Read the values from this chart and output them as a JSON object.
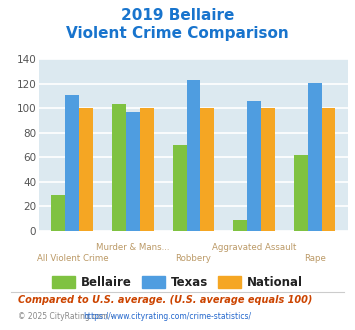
{
  "title_line1": "2019 Bellaire",
  "title_line2": "Violent Crime Comparison",
  "title_color": "#1874cd",
  "groups": [
    {
      "label": "All Violent Crime",
      "bellaire": 29,
      "texas": 111,
      "national": 100
    },
    {
      "label": "Murder & Mans...",
      "bellaire": 104,
      "texas": 97,
      "national": 100
    },
    {
      "label": "Robbery",
      "bellaire": 70,
      "texas": 123,
      "national": 100
    },
    {
      "label": "Aggravated Assault",
      "bellaire": 9,
      "texas": 106,
      "national": 100
    },
    {
      "label": "Rape",
      "bellaire": 62,
      "texas": 121,
      "national": 100
    }
  ],
  "color_bellaire": "#7fc241",
  "color_texas": "#4f9de0",
  "color_national": "#f5a623",
  "ylim": [
    0,
    140
  ],
  "yticks": [
    0,
    20,
    40,
    60,
    80,
    100,
    120,
    140
  ],
  "background_color": "#dce9f0",
  "grid_color": "#ffffff",
  "legend_labels": [
    "Bellaire",
    "Texas",
    "National"
  ],
  "top_labels": [
    "",
    "Murder & Mans...",
    "",
    "Aggravated Assault",
    ""
  ],
  "bottom_labels": [
    "All Violent Crime",
    "",
    "Robbery",
    "",
    "Rape"
  ],
  "footnote1": "Compared to U.S. average. (U.S. average equals 100)",
  "footnote1_color": "#cc4400",
  "footnote2": "© 2025 CityRating.com - https://www.cityrating.com/crime-statistics/",
  "footnote2_color": "#888888",
  "footnote2_url_color": "#2266cc"
}
